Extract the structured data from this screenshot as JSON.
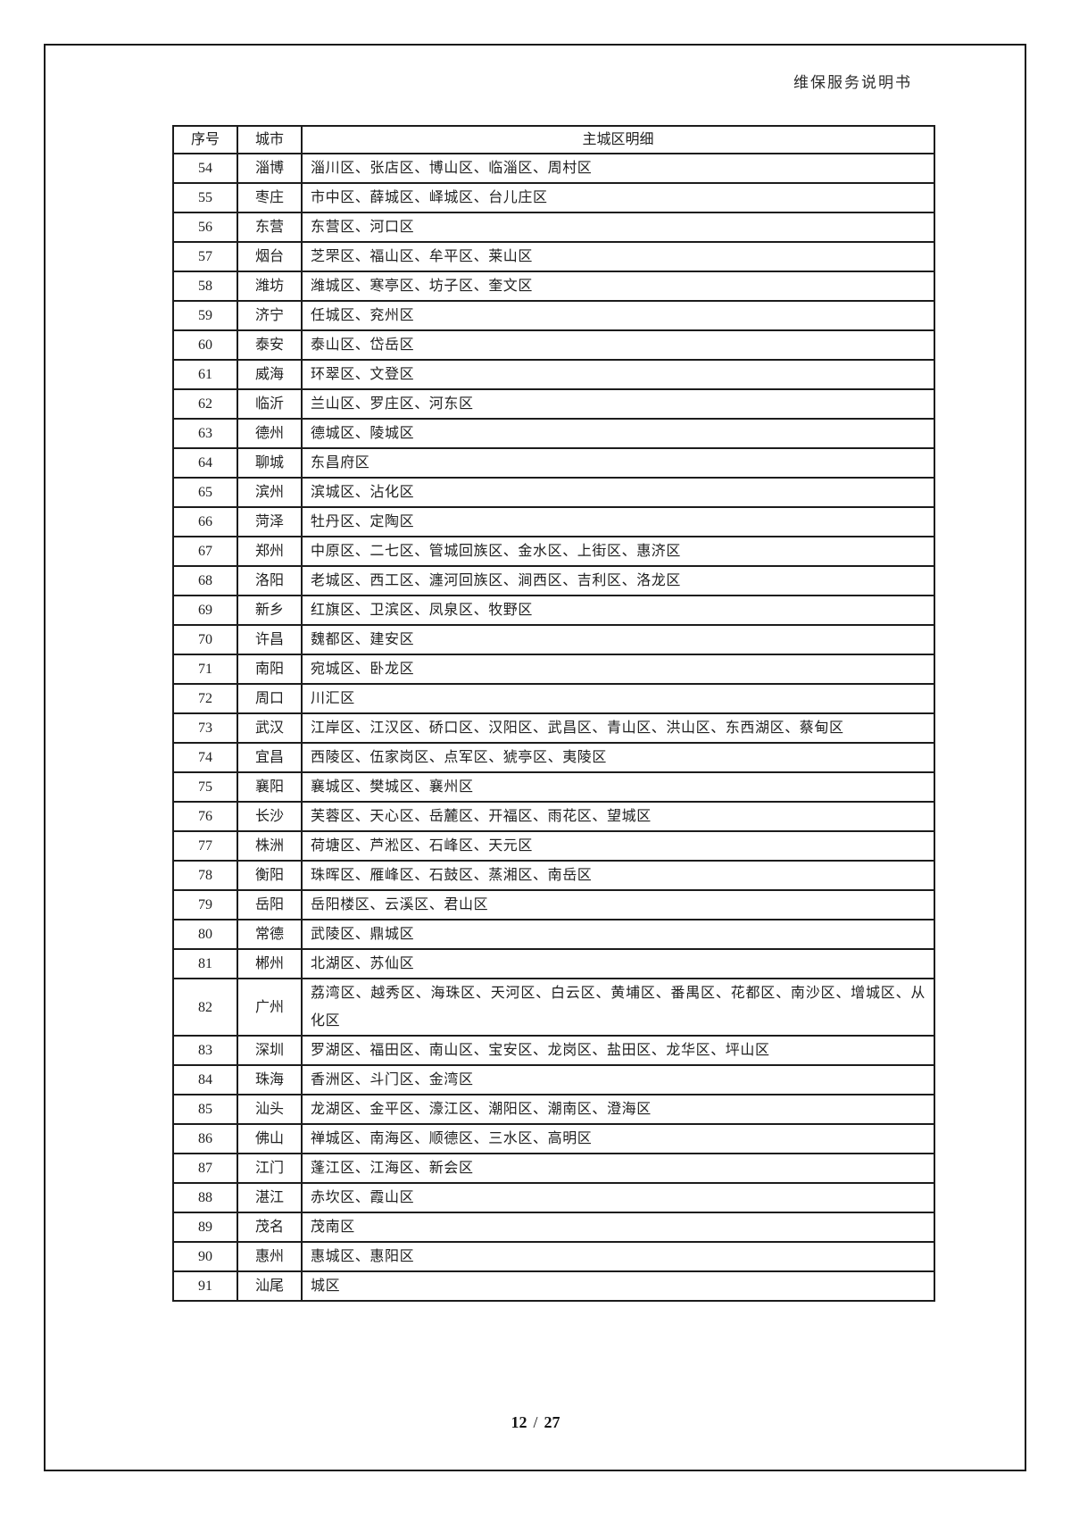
{
  "page": {
    "header_right": "维保服务说明书",
    "footer": {
      "current": "12",
      "separator": "/",
      "total": "27"
    }
  },
  "table": {
    "columns": [
      "序号",
      "城市",
      "主城区明细"
    ],
    "rows": [
      {
        "no": "54",
        "city": "淄博",
        "districts": "淄川区、张店区、博山区、临淄区、周村区"
      },
      {
        "no": "55",
        "city": "枣庄",
        "districts": "市中区、薛城区、峄城区、台儿庄区"
      },
      {
        "no": "56",
        "city": "东营",
        "districts": "东营区、河口区"
      },
      {
        "no": "57",
        "city": "烟台",
        "districts": "芝罘区、福山区、牟平区、莱山区"
      },
      {
        "no": "58",
        "city": "潍坊",
        "districts": "潍城区、寒亭区、坊子区、奎文区"
      },
      {
        "no": "59",
        "city": "济宁",
        "districts": "任城区、兖州区"
      },
      {
        "no": "60",
        "city": "泰安",
        "districts": "泰山区、岱岳区"
      },
      {
        "no": "61",
        "city": "威海",
        "districts": "环翠区、文登区"
      },
      {
        "no": "62",
        "city": "临沂",
        "districts": "兰山区、罗庄区、河东区"
      },
      {
        "no": "63",
        "city": "德州",
        "districts": "德城区、陵城区"
      },
      {
        "no": "64",
        "city": "聊城",
        "districts": "东昌府区"
      },
      {
        "no": "65",
        "city": "滨州",
        "districts": "滨城区、沾化区"
      },
      {
        "no": "66",
        "city": "菏泽",
        "districts": "牡丹区、定陶区"
      },
      {
        "no": "67",
        "city": "郑州",
        "districts": "中原区、二七区、管城回族区、金水区、上街区、惠济区"
      },
      {
        "no": "68",
        "city": "洛阳",
        "districts": "老城区、西工区、瀍河回族区、涧西区、吉利区、洛龙区"
      },
      {
        "no": "69",
        "city": "新乡",
        "districts": "红旗区、卫滨区、凤泉区、牧野区"
      },
      {
        "no": "70",
        "city": "许昌",
        "districts": "魏都区、建安区"
      },
      {
        "no": "71",
        "city": "南阳",
        "districts": "宛城区、卧龙区"
      },
      {
        "no": "72",
        "city": "周口",
        "districts": "川汇区"
      },
      {
        "no": "73",
        "city": "武汉",
        "districts": "江岸区、江汉区、硚口区、汉阳区、武昌区、青山区、洪山区、东西湖区、蔡甸区"
      },
      {
        "no": "74",
        "city": "宜昌",
        "districts": "西陵区、伍家岗区、点军区、猇亭区、夷陵区"
      },
      {
        "no": "75",
        "city": "襄阳",
        "districts": "襄城区、樊城区、襄州区"
      },
      {
        "no": "76",
        "city": "长沙",
        "districts": "芙蓉区、天心区、岳麓区、开福区、雨花区、望城区"
      },
      {
        "no": "77",
        "city": "株洲",
        "districts": "荷塘区、芦淞区、石峰区、天元区"
      },
      {
        "no": "78",
        "city": "衡阳",
        "districts": "珠晖区、雁峰区、石鼓区、蒸湘区、南岳区"
      },
      {
        "no": "79",
        "city": "岳阳",
        "districts": "岳阳楼区、云溪区、君山区"
      },
      {
        "no": "80",
        "city": "常德",
        "districts": "武陵区、鼎城区"
      },
      {
        "no": "81",
        "city": "郴州",
        "districts": "北湖区、苏仙区"
      },
      {
        "no": "82",
        "city": "广州",
        "districts": "荔湾区、越秀区、海珠区、天河区、白云区、黄埔区、番禺区、花都区、南沙区、增城区、从化区"
      },
      {
        "no": "83",
        "city": "深圳",
        "districts": "罗湖区、福田区、南山区、宝安区、龙岗区、盐田区、龙华区、坪山区"
      },
      {
        "no": "84",
        "city": "珠海",
        "districts": "香洲区、斗门区、金湾区"
      },
      {
        "no": "85",
        "city": "汕头",
        "districts": "龙湖区、金平区、濠江区、潮阳区、潮南区、澄海区"
      },
      {
        "no": "86",
        "city": "佛山",
        "districts": "禅城区、南海区、顺德区、三水区、高明区"
      },
      {
        "no": "87",
        "city": "江门",
        "districts": "蓬江区、江海区、新会区"
      },
      {
        "no": "88",
        "city": "湛江",
        "districts": "赤坎区、霞山区"
      },
      {
        "no": "89",
        "city": "茂名",
        "districts": "茂南区"
      },
      {
        "no": "90",
        "city": "惠州",
        "districts": "惠城区、惠阳区"
      },
      {
        "no": "91",
        "city": "汕尾",
        "districts": "城区"
      }
    ]
  }
}
